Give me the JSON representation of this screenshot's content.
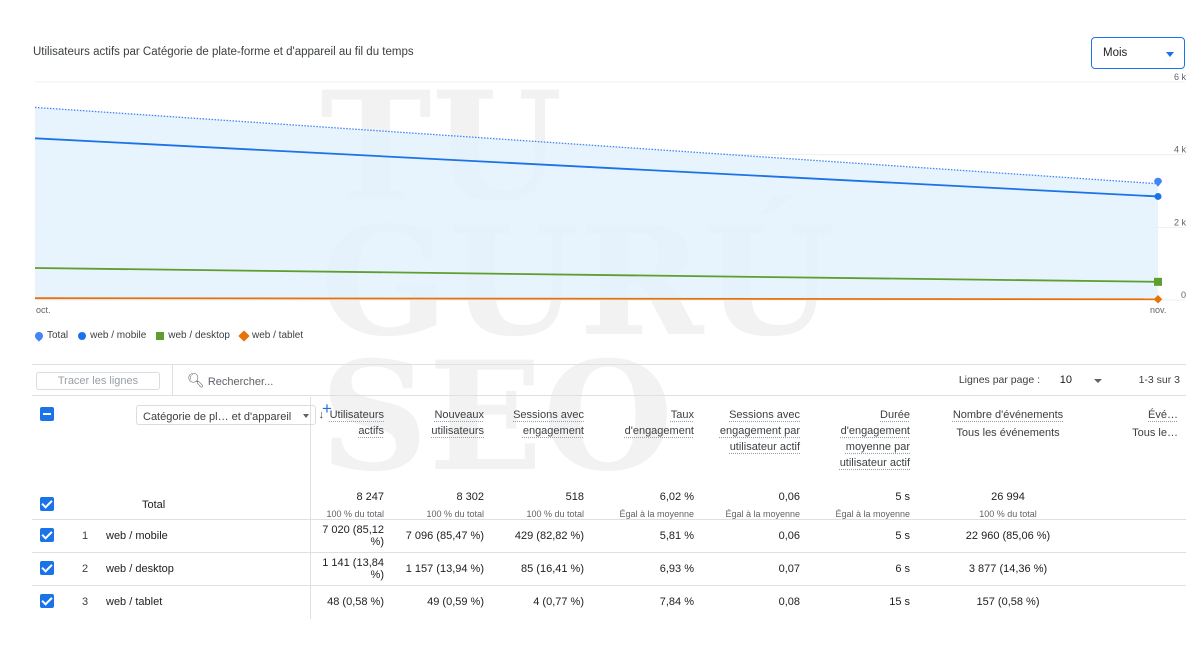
{
  "chart": {
    "title": "Utilisateurs actifs par Catégorie de plate-forme et d'appareil au fil du temps",
    "period_select": "Mois"
  },
  "chart_data": {
    "type": "line",
    "x": [
      "oct.",
      "nov."
    ],
    "yticks": [
      "0",
      "2 k",
      "4 k",
      "6 k"
    ],
    "ylim": [
      0,
      6000
    ],
    "grid": true,
    "legend_placement": "bottom-left",
    "series": [
      {
        "name": "Total",
        "values": [
          5300,
          3200
        ],
        "color": "#4285f4",
        "style": "dotted",
        "marker": "pin"
      },
      {
        "name": "web / mobile",
        "values": [
          4450,
          2850
        ],
        "color": "#1a73e8",
        "marker": "circle"
      },
      {
        "name": "web / desktop",
        "values": [
          880,
          500
        ],
        "color": "#5e9e2f",
        "marker": "square"
      },
      {
        "name": "web / tablet",
        "values": [
          50,
          20
        ],
        "color": "#e8710a",
        "marker": "diamond"
      }
    ]
  },
  "watermark": "TU GURÚ EN SEO",
  "toolbar": {
    "trace": "Tracer les lignes",
    "search_placeholder": "Rechercher...",
    "rows_per_page_label": "Lignes par page :",
    "rows_per_page": "10",
    "pagination": "1-3 sur 3"
  },
  "table": {
    "dimension": "Catégorie de pl… et d'appareil",
    "columns": [
      {
        "label": "Utilisateurs actifs",
        "sorted": true
      },
      {
        "label": "Nouveaux utilisateurs"
      },
      {
        "label": "Sessions avec engagement"
      },
      {
        "label": "Taux d'engagement"
      },
      {
        "label": "Sessions avec engagement par utilisateur actif"
      },
      {
        "label": "Durée d'engagement moyenne par utilisateur actif"
      },
      {
        "label": "Nombre d'événements",
        "sub": "Tous les événements"
      },
      {
        "label": "Évé…",
        "sub": "Tous le…"
      }
    ],
    "total": {
      "label": "Total",
      "values": [
        "8 247",
        "8 302",
        "518",
        "6,02 %",
        "0,06",
        "5 s",
        "26 994",
        ""
      ],
      "subs": [
        "100 % du total",
        "100 % du total",
        "100 % du total",
        "Égal à la moyenne",
        "Égal à la moyenne",
        "Égal à la moyenne",
        "100 % du total",
        ""
      ]
    },
    "rows": [
      {
        "n": "1",
        "name": "web / mobile",
        "values": [
          "7 020 (85,12 %)",
          "7 096 (85,47 %)",
          "429 (82,82 %)",
          "5,81 %",
          "0,06",
          "5 s",
          "22 960 (85,06 %)",
          ""
        ]
      },
      {
        "n": "2",
        "name": "web / desktop",
        "values": [
          "1 141 (13,84 %)",
          "1 157 (13,94 %)",
          "85 (16,41 %)",
          "6,93 %",
          "0,07",
          "6 s",
          "3 877 (14,36 %)",
          ""
        ]
      },
      {
        "n": "3",
        "name": "web / tablet",
        "values": [
          "48 (0,58 %)",
          "49 (0,59 %)",
          "4 (0,77 %)",
          "7,84 %",
          "0,08",
          "15 s",
          "157 (0,58 %)",
          ""
        ]
      }
    ]
  }
}
